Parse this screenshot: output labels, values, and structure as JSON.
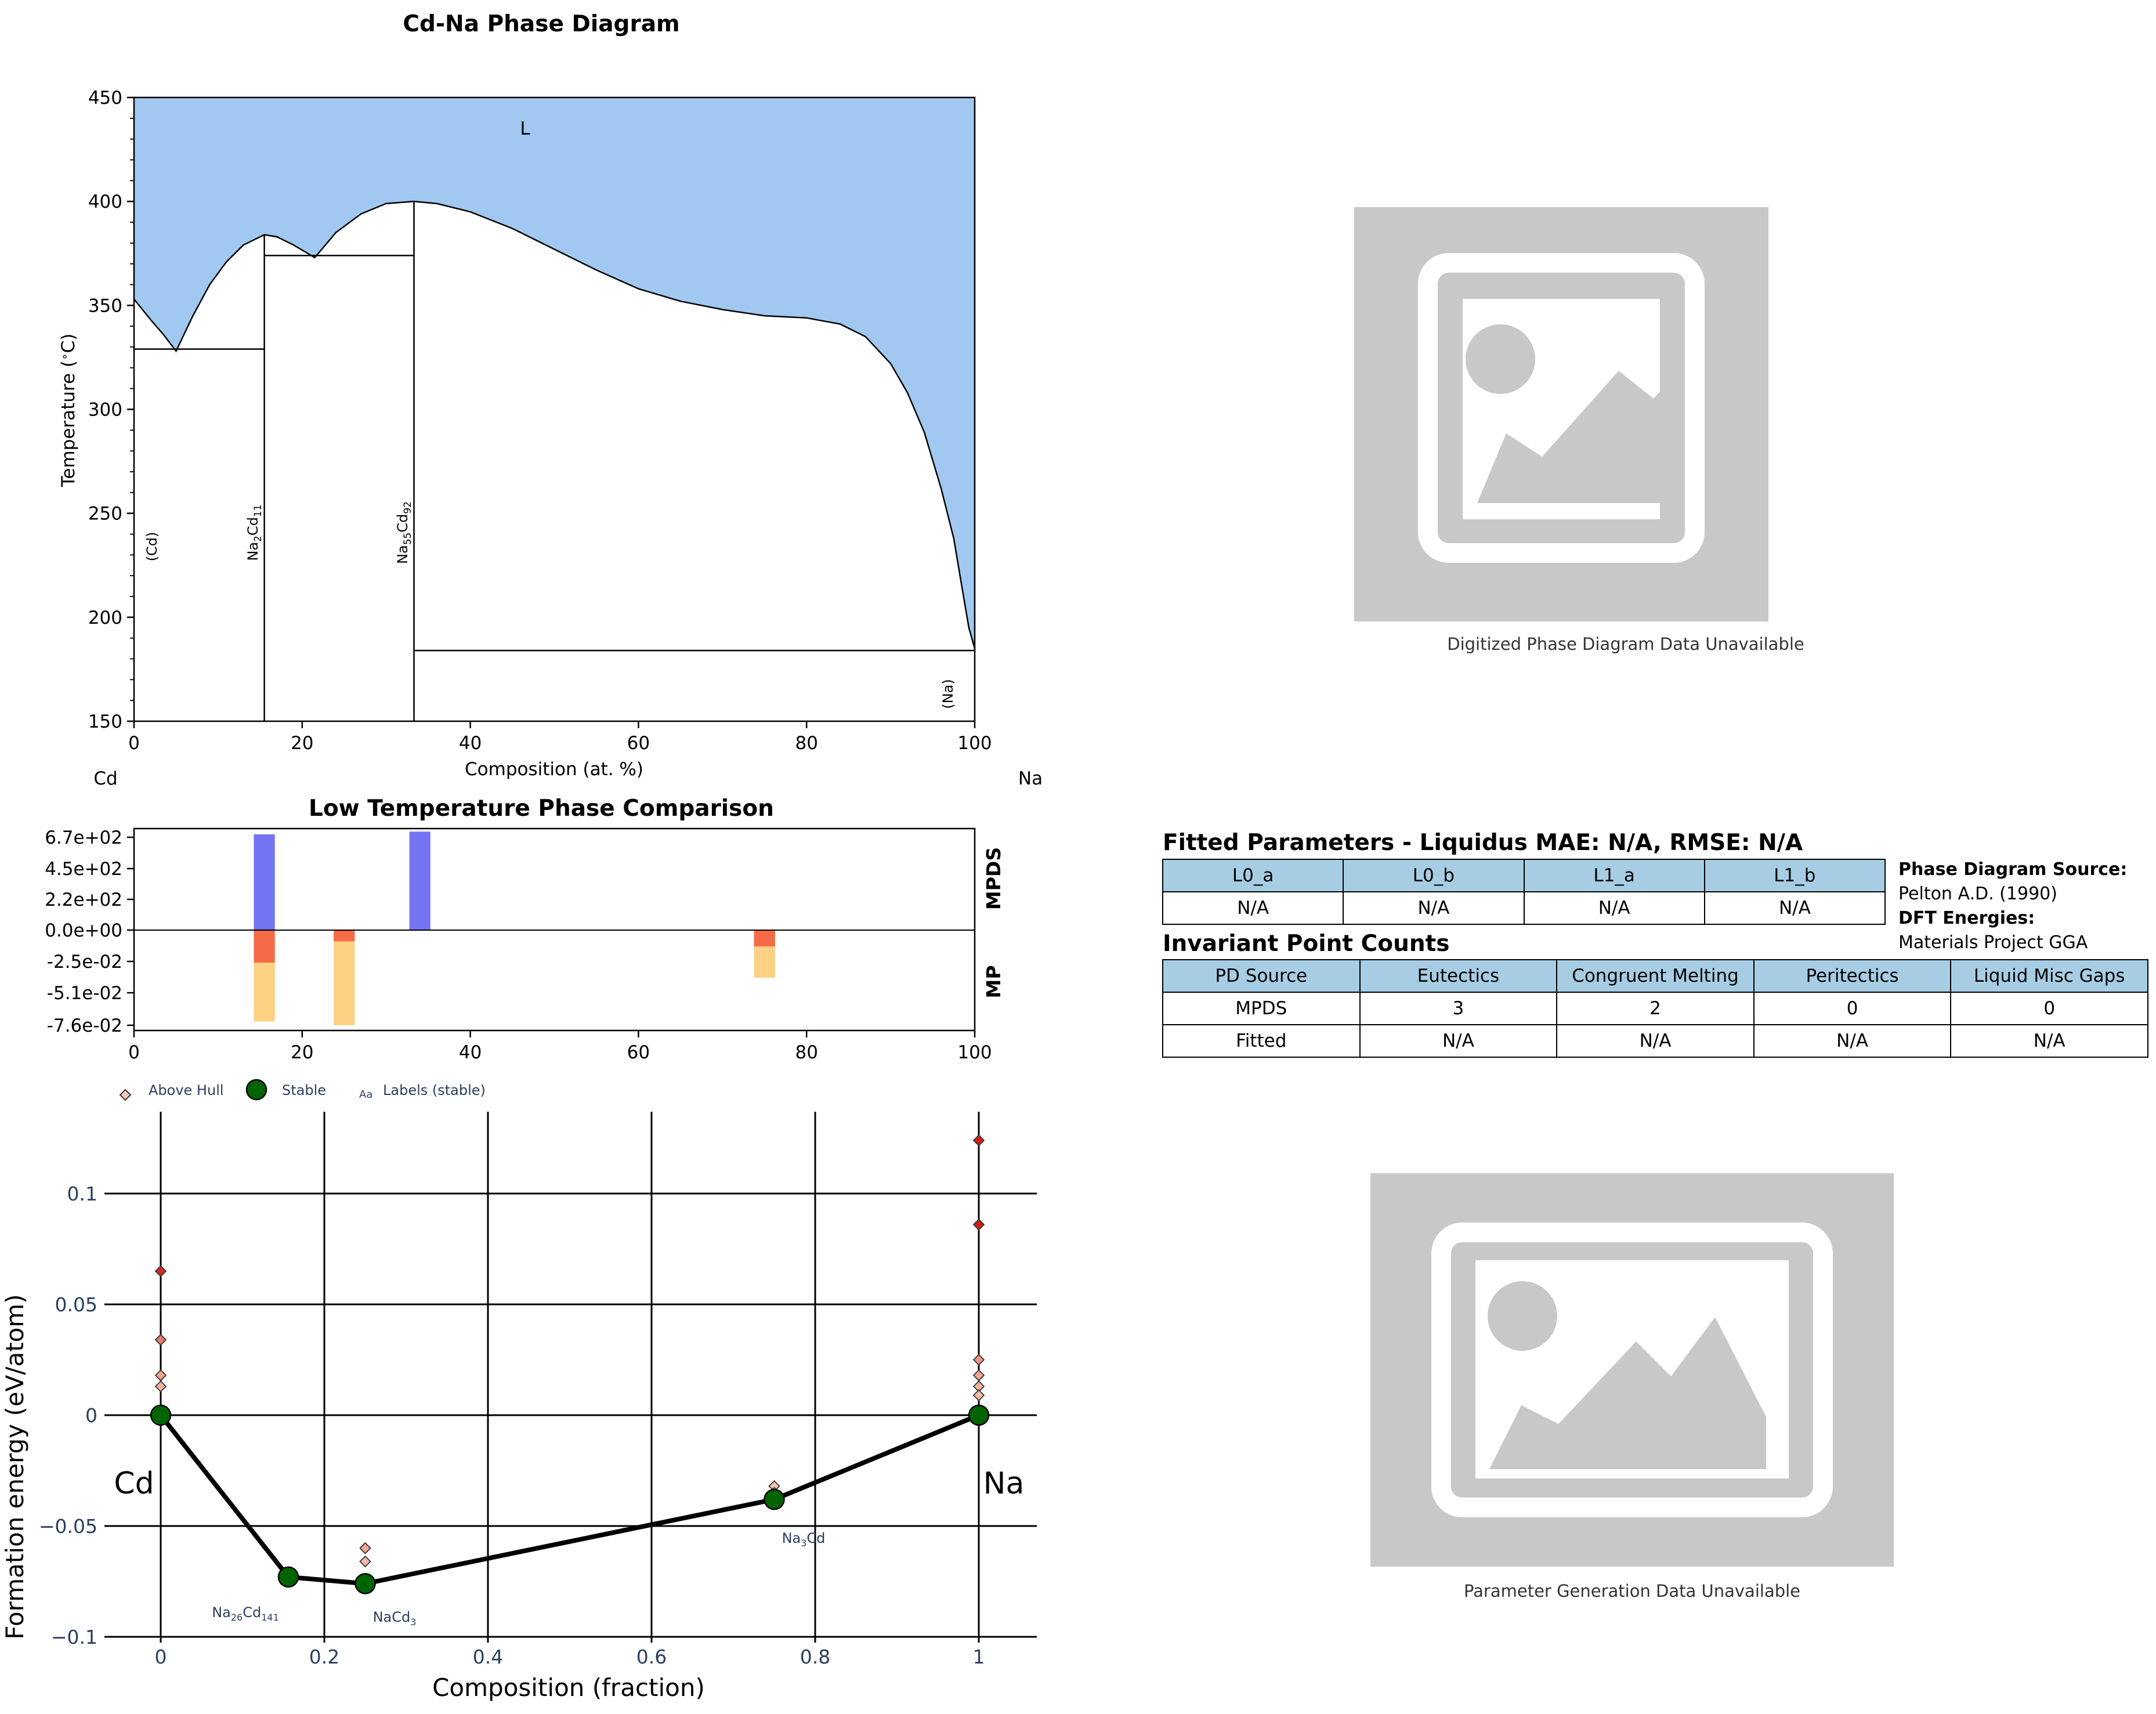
{
  "phase_diagram": {
    "title": "Cd-Na Phase Diagram",
    "xlabel": "Composition (at. %)",
    "ylabel": "Temperature (°C)",
    "left_element": "Cd",
    "right_element": "Na",
    "liquid_label": "L",
    "phase_labels": [
      "(Cd)",
      "Na2Cd11",
      "Na55Cd92",
      "(Na)"
    ]
  },
  "comparison": {
    "title": "Low Temperature Phase Comparison",
    "top_label": "MPDS",
    "bottom_label": "MP"
  },
  "hull": {
    "xlabel": "Composition (fraction)",
    "ylabel": "Formation energy (eV/atom)",
    "legend": [
      "Above Hull",
      "Stable",
      "Labels (stable)"
    ],
    "legend_glyph": "Aa",
    "left_element": "Cd",
    "right_element": "Na",
    "stable_labels": [
      "Na26Cd141",
      "NaCd3",
      "Na3Cd"
    ]
  },
  "placeholders": {
    "digitized_caption": "Digitized Phase Diagram Data Unavailable",
    "parameter_caption": "Parameter Generation Data Unavailable",
    "icon": "image-placeholder-icon"
  },
  "fitted": {
    "title": "Fitted Parameters - Liquidus MAE: N/A, RMSE: N/A",
    "headers": [
      "L0_a",
      "L0_b",
      "L1_a",
      "L1_b"
    ],
    "values": [
      "N/A",
      "N/A",
      "N/A",
      "N/A"
    ]
  },
  "sources": {
    "pd_label": "Phase Diagram Source:",
    "pd_value": "Pelton A.D. (1990)",
    "dft_label": "DFT Energies:",
    "dft_value": "Materials Project GGA"
  },
  "invariant": {
    "title": "Invariant Point Counts",
    "headers": [
      "PD Source",
      "Eutectics",
      "Congruent Melting",
      "Peritectics",
      "Liquid Misc Gaps"
    ],
    "rows": [
      [
        "MPDS",
        "3",
        "2",
        "0",
        "0"
      ],
      [
        "Fitted",
        "N/A",
        "N/A",
        "N/A",
        "N/A"
      ]
    ]
  },
  "colors": {
    "liquid": "#a0c8f0",
    "mpds_bar": "#7474f2",
    "mp_bar_top": "#f56b47",
    "mp_bar_bottom": "#fcd184",
    "stable": "#006400",
    "header_fill": "#a6cde3",
    "hull_axis_text": "#2a3f5f"
  },
  "chart_data": [
    {
      "type": "line",
      "title": "Cd-Na Phase Diagram",
      "xlabel": "Composition (at. %)",
      "ylabel": "Temperature (°C)",
      "xlim": [
        0,
        100
      ],
      "ylim": [
        150,
        450
      ],
      "xticks": [
        0,
        20,
        40,
        60,
        80,
        100
      ],
      "yticks": [
        150,
        200,
        250,
        300,
        350,
        400,
        450
      ],
      "series": [
        {
          "x": [
            0,
            2,
            3.5,
            5,
            7,
            9,
            11,
            13,
            15.5,
            17,
            19,
            21.5,
            24,
            27,
            30,
            33.3,
            36,
            40,
            45,
            50,
            55,
            60,
            65,
            70,
            75,
            80,
            84,
            87,
            90,
            92,
            94,
            96,
            97.5,
            98.5,
            99.3,
            100
          ],
          "y": [
            353,
            343,
            336,
            328,
            345,
            360,
            371,
            379,
            384,
            383,
            379,
            373,
            385,
            394,
            399,
            400,
            399,
            395,
            387,
            377,
            367,
            358,
            352,
            348,
            345,
            344,
            341,
            335,
            322,
            308,
            289,
            262,
            238,
            214,
            195,
            185
          ]
        }
      ],
      "invariant_lines": [
        {
          "x": [
            0,
            15.5
          ],
          "y": 329
        },
        {
          "x": [
            15.5,
            33.3
          ],
          "y": 374
        },
        {
          "x": [
            33.3,
            100
          ],
          "y": 184
        }
      ],
      "compound_lines": [
        {
          "x": 15.5,
          "y": [
            150,
            384
          ]
        },
        {
          "x": 33.3,
          "y": [
            150,
            400
          ]
        }
      ]
    },
    {
      "type": "bar",
      "title": "Low Temperature Phase Comparison",
      "xlim": [
        0,
        100
      ],
      "xticks": [
        0,
        20,
        40,
        60,
        80,
        100
      ],
      "yticks_top": [
        "6.7e+02",
        "4.5e+02",
        "2.2e+02",
        "0.0e+00"
      ],
      "yticks_bottom": [
        "-2.5e-02",
        "-5.1e-02",
        "-7.6e-02"
      ],
      "top_max": 670,
      "bottom_min": -0.076,
      "mpds": [
        {
          "x": 15.5,
          "value": 632
        },
        {
          "x": 34.0,
          "value": 650
        }
      ],
      "mp": [
        {
          "x": 15.5,
          "value": -0.073,
          "above_hull": -0.026
        },
        {
          "x": 25.0,
          "value": -0.076,
          "above_hull": -0.009
        },
        {
          "x": 75.0,
          "value": -0.038,
          "above_hull": -0.013
        }
      ]
    },
    {
      "type": "scatter",
      "xlabel": "Composition (fraction)",
      "ylabel": "Formation energy (eV/atom)",
      "xlim": [
        -0.03,
        1.07
      ],
      "ylim": [
        -0.1,
        0.135
      ],
      "xticks": [
        "0",
        "0.2",
        "0.4",
        "0.6",
        "0.8",
        "1"
      ],
      "yticks": [
        "0.1",
        "0.05",
        "0",
        "−0.05",
        "−0.1"
      ],
      "stable": [
        {
          "x": 0,
          "y": 0,
          "label": "Cd"
        },
        {
          "x": 0.156,
          "y": -0.073,
          "label": "Na26Cd141"
        },
        {
          "x": 0.25,
          "y": -0.076,
          "label": "NaCd3"
        },
        {
          "x": 0.75,
          "y": -0.038,
          "label": "Na3Cd"
        },
        {
          "x": 1,
          "y": 0,
          "label": "Na"
        }
      ],
      "above_hull": [
        {
          "x": 0,
          "y": 0.065,
          "e": 0.065
        },
        {
          "x": 0,
          "y": 0.034,
          "e": 0.034
        },
        {
          "x": 0,
          "y": 0.018,
          "e": 0.018
        },
        {
          "x": 0,
          "y": 0.013,
          "e": 0.013
        },
        {
          "x": 0.156,
          "y": -0.071,
          "e": 0.002
        },
        {
          "x": 0.25,
          "y": -0.06,
          "e": 0.016
        },
        {
          "x": 0.25,
          "y": -0.066,
          "e": 0.01
        },
        {
          "x": 0.75,
          "y": -0.032,
          "e": 0.006
        },
        {
          "x": 0.75,
          "y": -0.035,
          "e": 0.003
        },
        {
          "x": 1,
          "y": 0.124,
          "e": 0.124
        },
        {
          "x": 1,
          "y": 0.086,
          "e": 0.086
        },
        {
          "x": 1,
          "y": 0.025,
          "e": 0.025
        },
        {
          "x": 1,
          "y": 0.018,
          "e": 0.018
        },
        {
          "x": 1,
          "y": 0.013,
          "e": 0.013
        },
        {
          "x": 1,
          "y": 0.009,
          "e": 0.009
        }
      ]
    }
  ]
}
